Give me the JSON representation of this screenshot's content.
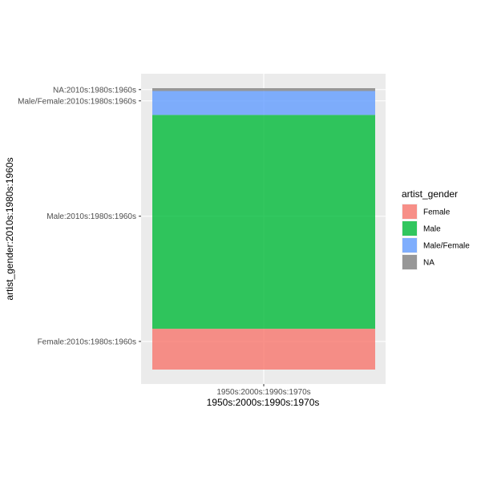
{
  "chart_data": {
    "type": "bar",
    "title": "",
    "xlabel": "1950s:2000s:1990s:1970s",
    "ylabel": "artist_gender:2010s:1980s:1960s",
    "categories": [
      "1950s:2000s:1990s:1970s"
    ],
    "y_ticks": [
      {
        "label": "Female:2010s:1980s:1960s",
        "value": 0.1
      },
      {
        "label": "Male:2010s:1980s:1960s",
        "value": 0.545
      },
      {
        "label": "Male/Female:2010s:1980s:1960s",
        "value": 0.955
      },
      {
        "label": "NA:2010s:1980s:1960s",
        "value": 0.995
      }
    ],
    "ylim": [
      0,
      1
    ],
    "series": [
      {
        "name": "Female",
        "start": 0.0,
        "end": 0.145,
        "color": "#F8766D"
      },
      {
        "name": "Male",
        "start": 0.145,
        "end": 0.905,
        "color": "#00BA38"
      },
      {
        "name": "Male/Female",
        "start": 0.905,
        "end": 0.99,
        "color": "#619CFF"
      },
      {
        "name": "NA",
        "start": 0.99,
        "end": 1.0,
        "color": "#7F7F7F"
      }
    ],
    "legend": {
      "title": "artist_gender",
      "position": "right",
      "items": [
        {
          "label": "Female",
          "color": "#F8766D"
        },
        {
          "label": "Male",
          "color": "#00BA38"
        },
        {
          "label": "Male/Female",
          "color": "#619CFF"
        },
        {
          "label": "NA",
          "color": "#7F7F7F"
        }
      ]
    },
    "grid": true,
    "panel_background": "#EBEBEB"
  }
}
